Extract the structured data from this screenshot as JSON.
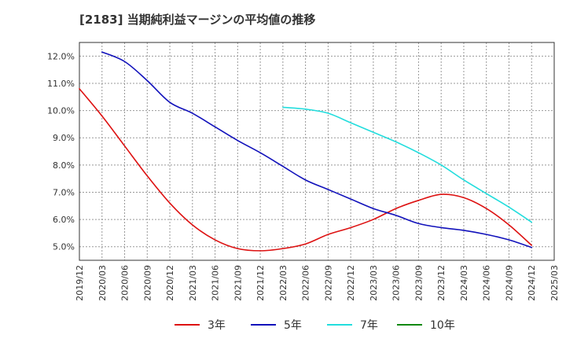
{
  "chart_data": {
    "type": "line",
    "title": "[2183]  当期純利益マージンの平均値の推移",
    "xlabel": "",
    "ylabel": "",
    "x": [
      "2019/12",
      "2020/03",
      "2020/06",
      "2020/09",
      "2020/12",
      "2021/03",
      "2021/06",
      "2021/09",
      "2021/12",
      "2022/03",
      "2022/06",
      "2022/09",
      "2022/12",
      "2023/03",
      "2023/06",
      "2023/09",
      "2023/12",
      "2024/03",
      "2024/06",
      "2024/09",
      "2024/12",
      "2025/03"
    ],
    "ylim": [
      4.5,
      12.5
    ],
    "yticks": [
      5.0,
      6.0,
      7.0,
      8.0,
      9.0,
      10.0,
      11.0,
      12.0
    ],
    "ytick_labels": [
      "5.0%",
      "6.0%",
      "7.0%",
      "8.0%",
      "9.0%",
      "10.0%",
      "11.0%",
      "12.0%"
    ],
    "grid": true,
    "legend_position": "bottom",
    "series": [
      {
        "name": "3年",
        "color": "#dd1111",
        "values": [
          10.8,
          9.8,
          8.7,
          7.6,
          6.6,
          5.8,
          5.25,
          4.93,
          4.85,
          4.93,
          5.1,
          5.45,
          5.7,
          6.0,
          6.4,
          6.7,
          6.92,
          6.8,
          6.4,
          5.8,
          5.05,
          null
        ]
      },
      {
        "name": "5年",
        "color": "#1111bb",
        "values": [
          null,
          12.15,
          11.8,
          11.1,
          10.3,
          9.9,
          9.4,
          8.9,
          8.45,
          7.95,
          7.45,
          7.1,
          6.75,
          6.4,
          6.15,
          5.85,
          5.7,
          5.6,
          5.45,
          5.25,
          4.97,
          null
        ]
      },
      {
        "name": "7年",
        "color": "#22dddd",
        "values": [
          null,
          null,
          null,
          null,
          null,
          null,
          null,
          null,
          null,
          10.12,
          10.05,
          9.9,
          9.55,
          9.2,
          8.85,
          8.45,
          8.0,
          7.45,
          6.95,
          6.45,
          5.9,
          null
        ]
      },
      {
        "name": "10年",
        "color": "#118811",
        "values": [
          null,
          null,
          null,
          null,
          null,
          null,
          null,
          null,
          null,
          null,
          null,
          null,
          null,
          null,
          null,
          null,
          null,
          null,
          null,
          null,
          null,
          null
        ]
      }
    ]
  }
}
